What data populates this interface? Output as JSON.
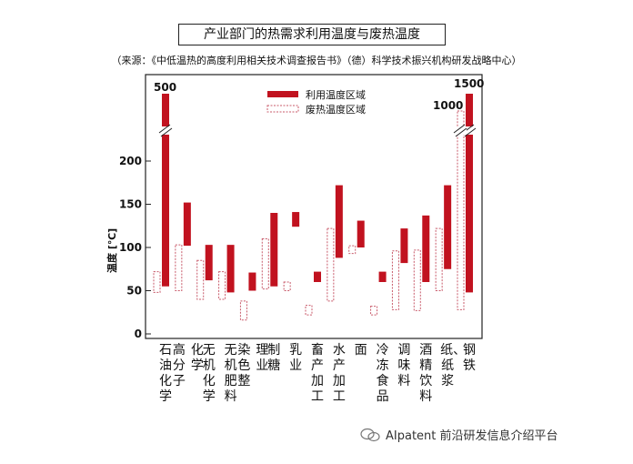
{
  "title": "产业部门的热需求利用温度与废热温度",
  "source": "（来源：《中低温热的高度利用相关技术调查报告书》（德）科学技术振兴机构研发战略中心）",
  "watermark": "AIpatent 前沿研发信息介绍平台",
  "colors": {
    "utilization": "#c1121f",
    "waste_border": "#c85a6a",
    "text": "#111111"
  },
  "chart_data": {
    "type": "bar",
    "subtype": "floating-range",
    "ylabel": "温度 [℃]",
    "ylim": [
      0,
      200
    ],
    "yticks": [
      0,
      50,
      100,
      150,
      200
    ],
    "axis_break": true,
    "break_value_labels": [
      "500",
      "1000",
      "1500"
    ],
    "legend": {
      "position": "top-center",
      "entries": [
        "利用温度区域",
        "废热温度区域"
      ]
    },
    "categories": [
      "石油化学",
      "高分子化学",
      "无机化学",
      "无机肥料",
      "染色整理业",
      "制糖",
      "乳业",
      "畜产加工",
      "水产加工",
      "面",
      "冷冻食品",
      "调味料",
      "酒精饮料",
      "纸、纸浆",
      "钢铁"
    ],
    "series": [
      {
        "name": "利用温度区域",
        "ranges": [
          [
            55,
            500
          ],
          [
            102,
            152
          ],
          [
            62,
            103
          ],
          [
            48,
            103
          ],
          [
            50,
            71
          ],
          [
            55,
            140
          ],
          [
            124,
            141
          ],
          [
            60,
            72
          ],
          [
            88,
            172
          ],
          [
            100,
            131
          ],
          [
            60,
            72
          ],
          [
            82,
            122
          ],
          [
            60,
            137
          ],
          [
            75,
            172
          ],
          [
            48,
            1500
          ]
        ]
      },
      {
        "name": "废热温度区域",
        "ranges": [
          [
            48,
            72
          ],
          [
            50,
            103
          ],
          [
            40,
            85
          ],
          [
            40,
            72
          ],
          [
            16,
            38
          ],
          [
            52,
            110
          ],
          [
            50,
            60
          ],
          [
            22,
            33
          ],
          [
            38,
            122
          ],
          [
            93,
            102
          ],
          [
            22,
            32
          ],
          [
            28,
            96
          ],
          [
            27,
            97
          ],
          [
            50,
            122
          ],
          [
            28,
            1000
          ]
        ]
      }
    ]
  }
}
